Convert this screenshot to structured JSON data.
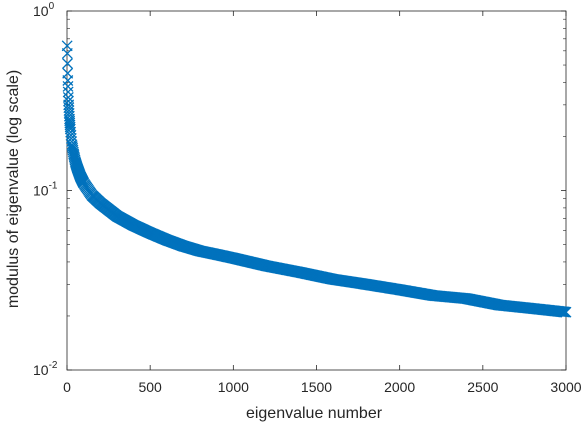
{
  "chart_data": {
    "type": "scatter",
    "xlabel": "eigenvalue number",
    "ylabel": "modulus of eigenvalue (log scale)",
    "xlim": [
      0,
      3000
    ],
    "ylim": [
      0.01,
      1
    ],
    "yscale": "log",
    "grid": false,
    "legend": "none",
    "marker": "x",
    "color": "#0072BD",
    "x_ticks": [
      0,
      500,
      1000,
      1500,
      2000,
      2500,
      3000
    ],
    "x_tick_labels": [
      "0",
      "500",
      "1000",
      "1500",
      "2000",
      "2500",
      "3000"
    ],
    "y_ticks": [
      0.01,
      0.1,
      1
    ],
    "y_tick_labels": [
      {
        "base": "10",
        "exp": "-2"
      },
      {
        "base": "10",
        "exp": "-1"
      },
      {
        "base": "10",
        "exp": "0"
      }
    ],
    "series": [
      {
        "x": [
          1,
          2,
          3,
          4,
          5,
          6,
          8,
          10,
          15,
          20,
          30,
          40,
          50,
          60,
          80,
          100,
          150,
          200,
          300,
          400,
          500,
          600,
          700,
          800,
          900,
          1000,
          1200,
          1400,
          1600,
          1800,
          2000,
          2200,
          2400,
          2600,
          2800,
          3000
        ],
        "y": [
          0.64,
          0.58,
          0.51,
          0.45,
          0.41,
          0.38,
          0.33,
          0.3,
          0.25,
          0.22,
          0.18,
          0.16,
          0.145,
          0.135,
          0.12,
          0.11,
          0.094,
          0.085,
          0.072,
          0.064,
          0.058,
          0.053,
          0.049,
          0.046,
          0.044,
          0.042,
          0.038,
          0.035,
          0.032,
          0.03,
          0.028,
          0.026,
          0.025,
          0.023,
          0.022,
          0.021
        ]
      }
    ]
  }
}
